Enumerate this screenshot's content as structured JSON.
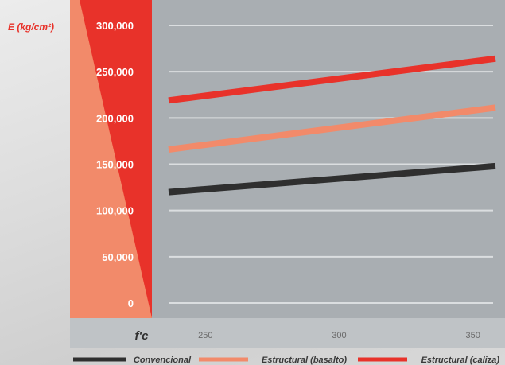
{
  "chart_data": {
    "type": "line",
    "title": "",
    "ylabel": "E (kg/cm²)",
    "xlabel": "f'c",
    "x": [
      250,
      350
    ],
    "xticks": [
      250,
      300,
      350
    ],
    "xlim": [
      230,
      362
    ],
    "ylim": [
      0,
      300000
    ],
    "yticks": [
      "0",
      "50,000",
      "100,000",
      "150,000",
      "200,000",
      "250,000",
      "300,000"
    ],
    "ytick_values": [
      0,
      50000,
      100000,
      150000,
      200000,
      250000,
      300000
    ],
    "grid": true,
    "legend_position": "bottom",
    "series": [
      {
        "name": "Convencional",
        "color": "#2f2f2f",
        "values": [
          123000,
          146000
        ]
      },
      {
        "name": "Estructural (basalto)",
        "color": "#f28a6a",
        "values": [
          171000,
          208000
        ]
      },
      {
        "name": "Estructural (caliza)",
        "color": "#e8322a",
        "values": [
          224000,
          261000
        ]
      }
    ],
    "colors": {
      "accent_red": "#e8322a",
      "salmon": "#f28a6a",
      "plot_bg": "#a9aeb2",
      "axis_strip": "#bfc3c6"
    }
  }
}
